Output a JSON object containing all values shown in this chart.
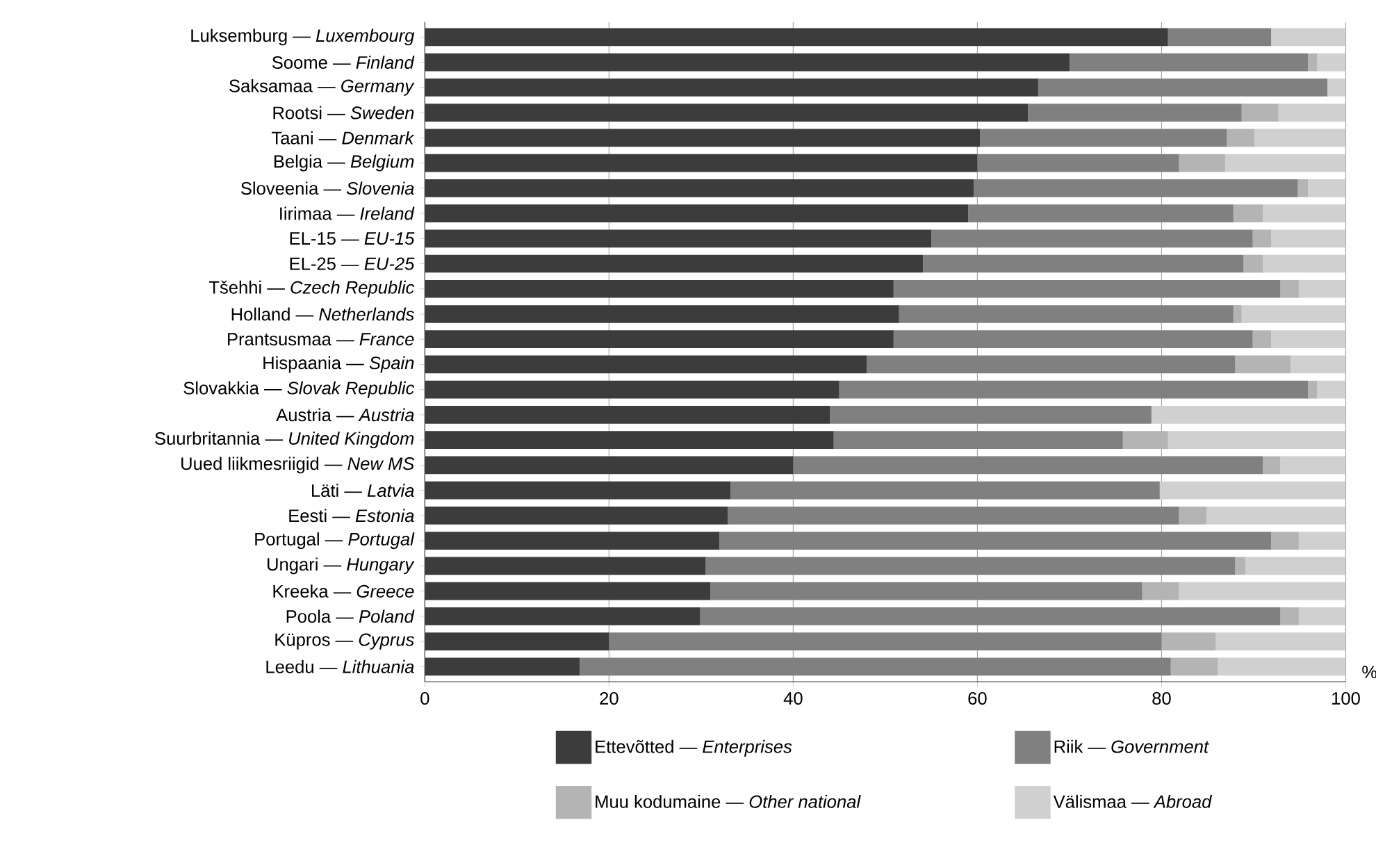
{
  "chart_data": {
    "type": "bar",
    "orientation": "horizontal",
    "stacked": true,
    "xlabel": "%",
    "xlim": [
      0,
      100
    ],
    "xticks": [
      0,
      20,
      40,
      60,
      80,
      100
    ],
    "grid": "x",
    "legend": "bottom",
    "categories": [
      "Luksemburg — *Luxembourg*",
      "Soome — *Finland*",
      "Saksamaa — *Germany*",
      "Rootsi — *Sweden*",
      "Taani — *Denmark*",
      "Belgia — *Belgium*",
      "Sloveenia — *Slovenia*",
      "Iirimaa — *Ireland*",
      "EL-15 — *EU-15*",
      "EL-25 — *EU-25*",
      "Tšehhi — *Czech Republic*",
      "Holland — *Netherlands*",
      "Prantsusmaa — *France*",
      "Hispaania — *Spain*",
      "Slovakkia — *Slovak Republic*",
      "Austria — *Austria*",
      "Suurbritannia — *United Kingdom*",
      "Uued liikmesriigid — *New MS*",
      "Läti — *Latvia*",
      "Eesti — *Estonia*",
      "Portugal — *Portugal*",
      "Ungari — *Hungary*",
      "Kreeka — *Greece*",
      "Poola — *Poland*",
      "Küpros — *Cyprus*",
      "Leedu — *Lithuania*"
    ],
    "series": [
      {
        "name": "Ettevõtted — *Enterprises*",
        "color": "#3c3c3c",
        "values": [
          80.7,
          70.0,
          66.6,
          65.5,
          60.3,
          60.0,
          59.6,
          59.0,
          55.0,
          54.1,
          50.9,
          51.5,
          50.9,
          48.0,
          45.0,
          44.0,
          44.4,
          40.0,
          33.2,
          32.9,
          32.0,
          30.5,
          31.0,
          29.9,
          20.0,
          16.8
        ]
      },
      {
        "name": "Riik — *Government*",
        "color": "#808080",
        "values": [
          11.2,
          25.9,
          31.4,
          23.2,
          26.8,
          21.9,
          35.2,
          28.8,
          34.9,
          34.8,
          42.0,
          36.3,
          39.0,
          40.0,
          50.9,
          34.9,
          31.4,
          51.0,
          46.6,
          49.0,
          59.9,
          57.5,
          46.9,
          63.0,
          60.0,
          64.2
        ]
      },
      {
        "name": "Muu kodumaine — *Other national*",
        "color": "#b4b4b4",
        "values": [
          0,
          1.0,
          0,
          4.0,
          3.0,
          5.0,
          1.1,
          3.2,
          2.0,
          2.1,
          2.0,
          0.9,
          2.0,
          6.0,
          1.0,
          0,
          4.9,
          1.9,
          0,
          3.0,
          3.0,
          1.1,
          4.0,
          2.0,
          5.9,
          5.1
        ]
      },
      {
        "name": "Välismaa — *Abroad*",
        "color": "#d0d0d0",
        "values": [
          8.1,
          3.1,
          2.0,
          7.3,
          9.9,
          13.1,
          4.1,
          9.0,
          8.1,
          9.0,
          5.1,
          11.3,
          8.1,
          6.0,
          3.1,
          21.1,
          19.3,
          7.1,
          20.2,
          15.1,
          5.1,
          10.9,
          18.1,
          5.1,
          14.1,
          13.9
        ]
      }
    ]
  }
}
